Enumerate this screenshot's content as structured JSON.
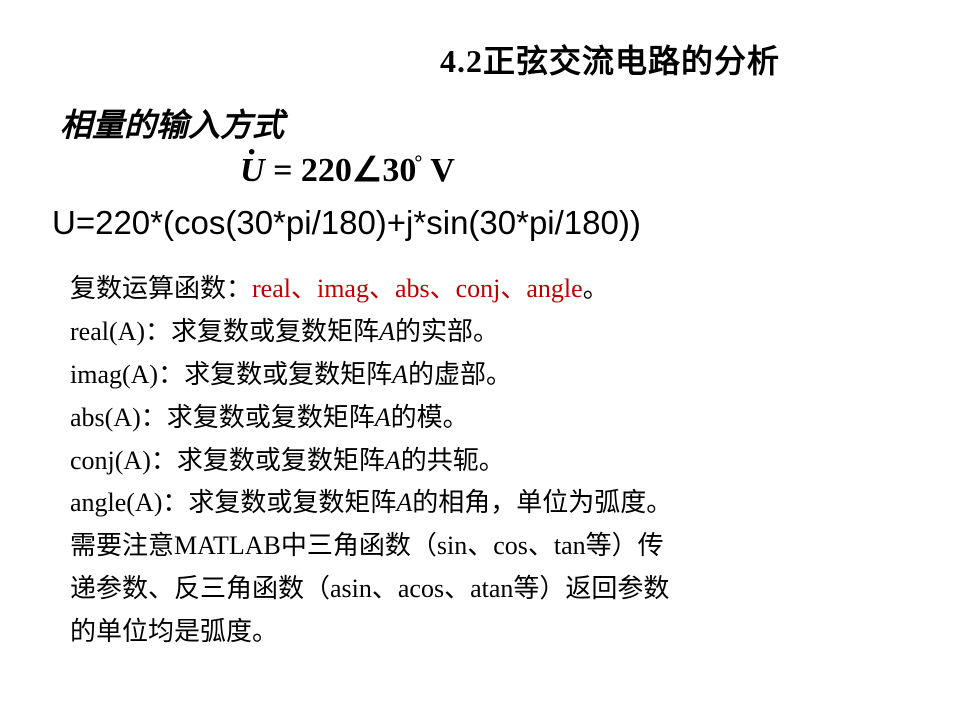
{
  "title": "4.2正弦交流电路的分析",
  "subtitle": "相量的输入方式",
  "formula": {
    "var": "U",
    "eq": " = 220",
    "angle_sym": "∠",
    "angle": "30",
    "deg": "°",
    "unit": " V"
  },
  "code": "U=220*(cos(30*pi/180)+j*sin(30*pi/180))",
  "lines": {
    "l1_pre": "复数运算函数：",
    "l1_red": "real、imag、abs、conj、angle",
    "l1_post": "。",
    "l2_a": "real(A)：求复数或复数矩阵",
    "l2_b": "A",
    "l2_c": "的实部。",
    "l3_a": "imag(A)：求复数或复数矩阵",
    "l3_b": "A",
    "l3_c": "的虚部。",
    "l4_a": "abs(A)：求复数或复数矩阵",
    "l4_b": "A",
    "l4_c": "的模。",
    "l5_a": "conj(A)：求复数或复数矩阵",
    "l5_b": "A",
    "l5_c": "的共轭。",
    "l6_a": "angle(A)：求复数或复数矩阵",
    "l6_b": "A",
    "l6_c": "的相角，单位为弧度。",
    "l7": "需要注意MATLAB中三角函数（sin、cos、tan等）传",
    "l8": "递参数、反三角函数（asin、acos、atan等）返回参数",
    "l9": "的单位均是弧度。"
  },
  "colors": {
    "text": "#000000",
    "red": "#c00000",
    "bg": "#ffffff"
  }
}
